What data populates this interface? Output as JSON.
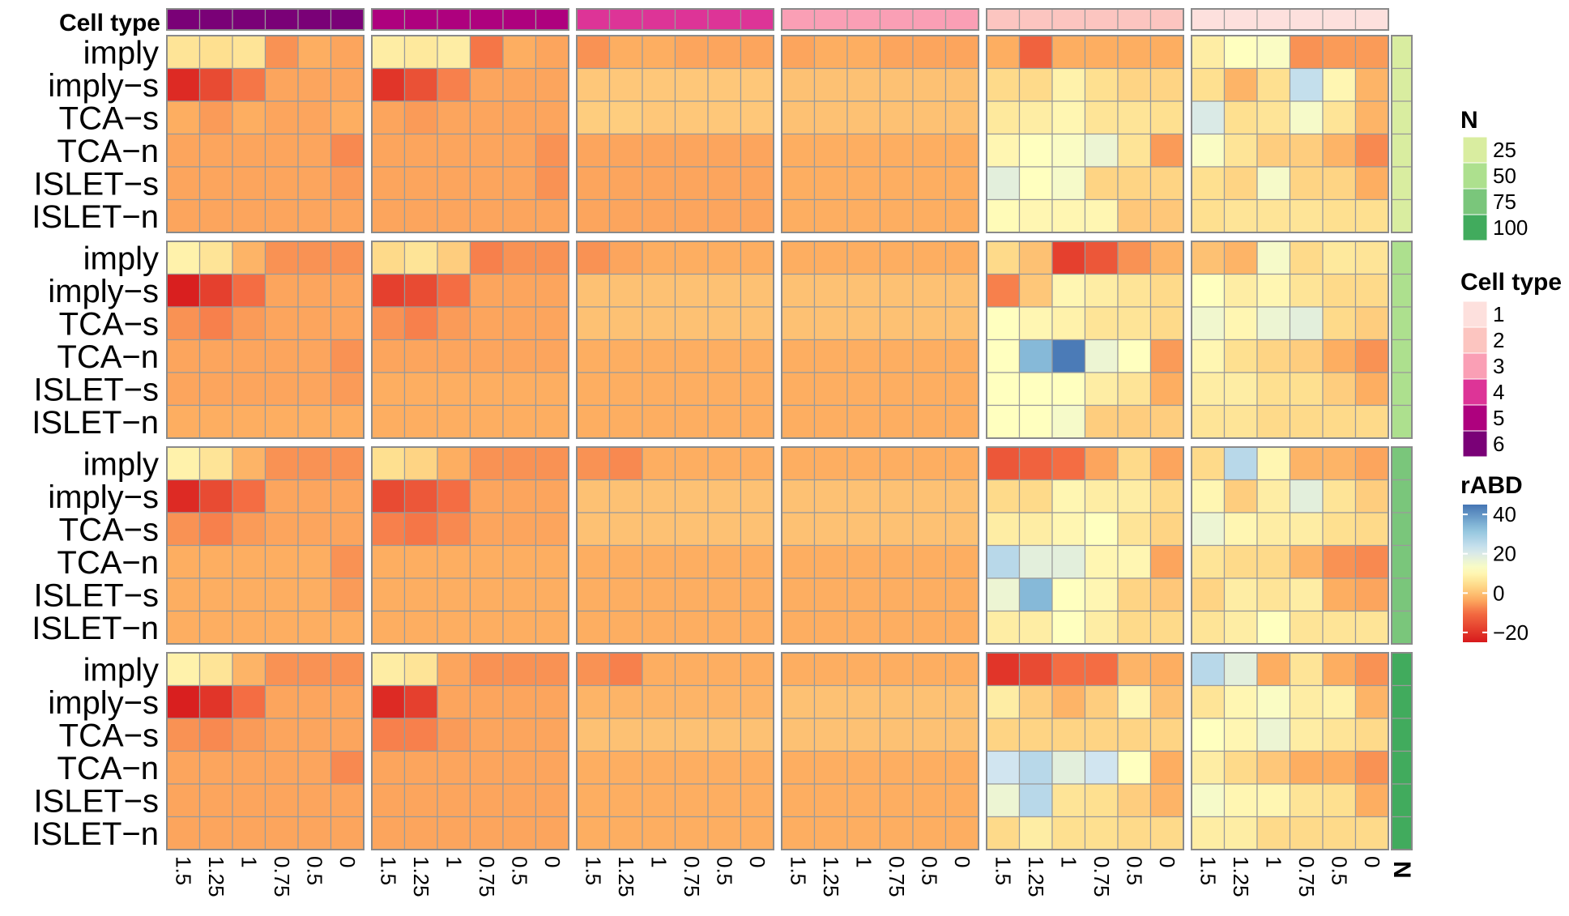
{
  "chart_data": {
    "type": "heatmap",
    "annotation_title": "Cell type",
    "bottom_annotation_title": "N",
    "row_labels": [
      "imply",
      "imply−s",
      "TCA−s",
      "TCA−n",
      "ISLET−s",
      "ISLET−n"
    ],
    "col_labels": [
      "1.5",
      "1.25",
      "1",
      "0.75",
      "0.5",
      "0"
    ],
    "row_groups": [
      {
        "N": 25
      },
      {
        "N": 50
      },
      {
        "N": 75
      },
      {
        "N": 100
      }
    ],
    "col_groups": [
      {
        "cell_type": 6
      },
      {
        "cell_type": 5
      },
      {
        "cell_type": 4
      },
      {
        "cell_type": 3
      },
      {
        "cell_type": 2
      },
      {
        "cell_type": 1
      }
    ],
    "values": [
      [
        [
          [
            6,
            5,
            6,
            -6,
            -3,
            -4
          ],
          [
            -22,
            -16,
            -9,
            -4,
            -4,
            -4
          ],
          [
            -3,
            -5,
            -3,
            -4,
            -4,
            -3
          ],
          [
            -4,
            -4,
            -4,
            -4,
            -4,
            -7
          ],
          [
            -4,
            -4,
            -4,
            -4,
            -4,
            -5
          ],
          [
            -4,
            -4,
            -4,
            -4,
            -4,
            -4
          ]
        ],
        [
          [
            8,
            7,
            8,
            -9,
            -3,
            -4
          ],
          [
            -20,
            -15,
            -8,
            -4,
            -4,
            -4
          ],
          [
            -4,
            -5,
            -4,
            -4,
            -4,
            -4
          ],
          [
            -4,
            -4,
            -4,
            -4,
            -4,
            -6
          ],
          [
            -4,
            -4,
            -4,
            -4,
            -4,
            -6
          ],
          [
            -4,
            -4,
            -4,
            -4,
            -4,
            -4
          ]
        ],
        [
          [
            -6,
            -3,
            -3,
            -4,
            -4,
            -4
          ],
          [
            1,
            1,
            1,
            1,
            1,
            1
          ],
          [
            2,
            2,
            1,
            1,
            1,
            1
          ],
          [
            -4,
            -4,
            -4,
            -4,
            -4,
            -4
          ],
          [
            -4,
            -4,
            -4,
            -4,
            -4,
            -4
          ],
          [
            -4,
            -4,
            -4,
            -4,
            -4,
            -4
          ]
        ],
        [
          [
            -4,
            -3,
            -3,
            -4,
            -4,
            -4
          ],
          [
            0,
            0,
            0,
            0,
            0,
            0
          ],
          [
            0,
            0,
            0,
            0,
            0,
            0
          ],
          [
            -3,
            -3,
            -3,
            -3,
            -3,
            -3
          ],
          [
            -3,
            -3,
            -3,
            -3,
            -3,
            -3
          ],
          [
            -3,
            -3,
            -3,
            -3,
            -3,
            -3
          ]
        ],
        [
          [
            -3,
            -12,
            -3,
            -3,
            -3,
            -3
          ],
          [
            4,
            4,
            9,
            5,
            3,
            3
          ],
          [
            7,
            8,
            10,
            6,
            6,
            5
          ],
          [
            10,
            12,
            13,
            16,
            6,
            -5
          ],
          [
            18,
            12,
            14,
            3,
            3,
            3
          ],
          [
            11,
            10,
            10,
            10,
            1,
            1
          ]
        ],
        [
          [
            8,
            12,
            13,
            -6,
            -5,
            -5
          ],
          [
            5,
            -2,
            5,
            24,
            10,
            -2
          ],
          [
            20,
            5,
            6,
            14,
            6,
            -2
          ],
          [
            13,
            6,
            2,
            2,
            -2,
            -7
          ],
          [
            5,
            3,
            14,
            3,
            3,
            -3
          ],
          [
            5,
            6,
            6,
            6,
            5,
            5
          ]
        ]
      ],
      [
        [
          [
            9,
            6,
            -2,
            -6,
            -6,
            -6
          ],
          [
            -24,
            -18,
            -10,
            -4,
            -4,
            -4
          ],
          [
            -6,
            -8,
            -5,
            -4,
            -4,
            -4
          ],
          [
            -4,
            -4,
            -4,
            -4,
            -4,
            -6
          ],
          [
            -4,
            -4,
            -4,
            -4,
            -4,
            -5
          ],
          [
            -3,
            -3,
            -3,
            -3,
            -3,
            -3
          ]
        ],
        [
          [
            4,
            6,
            2,
            -8,
            -6,
            -6
          ],
          [
            -18,
            -16,
            -10,
            -4,
            -4,
            -4
          ],
          [
            -6,
            -8,
            -5,
            -4,
            -4,
            -4
          ],
          [
            -4,
            -4,
            -4,
            -4,
            -4,
            -4
          ],
          [
            -3,
            -3,
            -3,
            -3,
            -3,
            -3
          ],
          [
            -3,
            -3,
            -3,
            -3,
            -3,
            -3
          ]
        ],
        [
          [
            -6,
            -4,
            -3,
            -3,
            -3,
            -3
          ],
          [
            0,
            0,
            0,
            0,
            0,
            0
          ],
          [
            0,
            0,
            0,
            0,
            0,
            0
          ],
          [
            -3,
            -3,
            -3,
            -3,
            -3,
            -3
          ],
          [
            -3,
            -3,
            -3,
            -3,
            -3,
            -3
          ],
          [
            -3,
            -3,
            -3,
            -3,
            -3,
            -3
          ]
        ],
        [
          [
            -3,
            -3,
            -3,
            -3,
            -3,
            -3
          ],
          [
            0,
            0,
            0,
            0,
            0,
            0
          ],
          [
            0,
            0,
            0,
            0,
            0,
            0
          ],
          [
            -3,
            -3,
            -3,
            -3,
            -3,
            -3
          ],
          [
            -3,
            -3,
            -3,
            -3,
            -3,
            -3
          ],
          [
            -3,
            -3,
            -3,
            -3,
            -3,
            -3
          ]
        ],
        [
          [
            4,
            0,
            -18,
            -14,
            -6,
            -2
          ],
          [
            -8,
            1,
            10,
            8,
            6,
            4
          ],
          [
            12,
            10,
            9,
            6,
            6,
            4
          ],
          [
            12,
            34,
            44,
            16,
            12,
            -5
          ],
          [
            12,
            12,
            12,
            8,
            6,
            -3
          ],
          [
            12,
            12,
            14,
            2,
            2,
            2
          ]
        ],
        [
          [
            0,
            -2,
            14,
            4,
            7,
            6
          ],
          [
            12,
            8,
            10,
            6,
            4,
            4
          ],
          [
            15,
            10,
            16,
            18,
            4,
            2
          ],
          [
            10,
            5,
            3,
            2,
            -3,
            -6
          ],
          [
            8,
            8,
            5,
            5,
            2,
            -3
          ],
          [
            6,
            6,
            4,
            4,
            4,
            4
          ]
        ]
      ],
      [
        [
          [
            9,
            6,
            -2,
            -6,
            -6,
            -6
          ],
          [
            -22,
            -16,
            -10,
            -4,
            -4,
            -4
          ],
          [
            -6,
            -8,
            -5,
            -4,
            -4,
            -4
          ],
          [
            -3,
            -3,
            -3,
            -3,
            -3,
            -6
          ],
          [
            -3,
            -3,
            -3,
            -3,
            -3,
            -5
          ],
          [
            -3,
            -3,
            -3,
            -3,
            -3,
            -3
          ]
        ],
        [
          [
            5,
            3,
            -3,
            -6,
            -6,
            -6
          ],
          [
            -16,
            -14,
            -10,
            -4,
            -4,
            -4
          ],
          [
            -8,
            -9,
            -7,
            -4,
            -4,
            -4
          ],
          [
            -3,
            -3,
            -3,
            -3,
            -3,
            -3
          ],
          [
            -3,
            -3,
            -3,
            -3,
            -3,
            -3
          ],
          [
            -3,
            -3,
            -3,
            -3,
            -3,
            -3
          ]
        ],
        [
          [
            -6,
            -7,
            -3,
            -3,
            -3,
            -3
          ],
          [
            0,
            0,
            0,
            0,
            0,
            0
          ],
          [
            0,
            0,
            0,
            0,
            0,
            0
          ],
          [
            -3,
            -3,
            -3,
            -3,
            -3,
            -3
          ],
          [
            -3,
            -3,
            -3,
            -3,
            -3,
            -3
          ],
          [
            -3,
            -3,
            -3,
            -3,
            -3,
            -3
          ]
        ],
        [
          [
            -3,
            -3,
            -3,
            -3,
            -3,
            -3
          ],
          [
            0,
            0,
            0,
            0,
            0,
            0
          ],
          [
            0,
            0,
            0,
            0,
            0,
            0
          ],
          [
            -3,
            -3,
            -3,
            -3,
            -3,
            -3
          ],
          [
            -3,
            -3,
            -3,
            -3,
            -3,
            -3
          ],
          [
            -3,
            -3,
            -3,
            -3,
            -3,
            -3
          ]
        ],
        [
          [
            -14,
            -12,
            -10,
            -4,
            4,
            -4
          ],
          [
            4,
            4,
            10,
            8,
            8,
            4
          ],
          [
            8,
            8,
            10,
            12,
            6,
            3
          ],
          [
            26,
            18,
            18,
            10,
            10,
            -4
          ],
          [
            16,
            34,
            12,
            10,
            3,
            1
          ],
          [
            8,
            8,
            12,
            8,
            4,
            4
          ]
        ],
        [
          [
            4,
            26,
            10,
            -2,
            -2,
            -4
          ],
          [
            10,
            2,
            8,
            18,
            6,
            2
          ],
          [
            16,
            10,
            8,
            8,
            5,
            4
          ],
          [
            6,
            4,
            4,
            -2,
            -6,
            -7
          ],
          [
            3,
            8,
            6,
            8,
            -3,
            -4
          ],
          [
            6,
            8,
            12,
            6,
            6,
            6
          ]
        ]
      ],
      [
        [
          [
            9,
            6,
            -2,
            -6,
            -6,
            -6
          ],
          [
            -24,
            -20,
            -10,
            -4,
            -4,
            -4
          ],
          [
            -6,
            -7,
            -5,
            -4,
            -4,
            -4
          ],
          [
            -4,
            -4,
            -4,
            -4,
            -4,
            -7
          ],
          [
            -4,
            -4,
            -4,
            -4,
            -4,
            -4
          ],
          [
            -4,
            -4,
            -4,
            -4,
            -4,
            -4
          ]
        ],
        [
          [
            8,
            6,
            -4,
            -6,
            -6,
            -6
          ],
          [
            -22,
            -18,
            -4,
            -4,
            -4,
            -4
          ],
          [
            -8,
            -8,
            -5,
            -4,
            -4,
            -4
          ],
          [
            -4,
            -4,
            -4,
            -4,
            -4,
            -4
          ],
          [
            -4,
            -4,
            -4,
            -4,
            -4,
            -4
          ],
          [
            -4,
            -4,
            -4,
            -4,
            -4,
            -4
          ]
        ],
        [
          [
            -6,
            -8,
            -3,
            -3,
            -3,
            -3
          ],
          [
            -2,
            -2,
            -2,
            -2,
            -2,
            -2
          ],
          [
            0,
            0,
            0,
            0,
            0,
            0
          ],
          [
            -3,
            -3,
            -3,
            -3,
            -3,
            -3
          ],
          [
            -3,
            -3,
            -3,
            -3,
            -3,
            -3
          ],
          [
            -3,
            -3,
            -3,
            -3,
            -3,
            -3
          ]
        ],
        [
          [
            -3,
            -3,
            -3,
            -3,
            -3,
            -3
          ],
          [
            0,
            0,
            0,
            0,
            0,
            0
          ],
          [
            0,
            0,
            0,
            0,
            0,
            0
          ],
          [
            -3,
            -3,
            -3,
            -3,
            -3,
            -3
          ],
          [
            -3,
            -3,
            -3,
            -3,
            -3,
            -3
          ],
          [
            -3,
            -3,
            -3,
            -3,
            -3,
            -3
          ]
        ],
        [
          [
            -20,
            -16,
            -10,
            -10,
            -2,
            -3
          ],
          [
            8,
            2,
            -2,
            2,
            10,
            0
          ],
          [
            3,
            3,
            3,
            3,
            3,
            3
          ],
          [
            22,
            26,
            18,
            22,
            12,
            -3
          ],
          [
            16,
            26,
            6,
            5,
            2,
            -2
          ],
          [
            4,
            8,
            5,
            5,
            4,
            4
          ]
        ],
        [
          [
            26,
            18,
            -3,
            6,
            -3,
            -6
          ],
          [
            6,
            10,
            13,
            8,
            9,
            -2
          ],
          [
            12,
            10,
            16,
            8,
            6,
            4
          ],
          [
            8,
            4,
            1,
            -3,
            -3,
            -6
          ],
          [
            14,
            10,
            10,
            6,
            5,
            -3
          ],
          [
            8,
            8,
            4,
            4,
            4,
            4
          ]
        ]
      ]
    ],
    "N_legend": {
      "title": "N",
      "labels": [
        "25",
        "50",
        "75",
        "100"
      ],
      "colors": [
        "#d9eda0",
        "#ade08e",
        "#7ac67b",
        "#41ab5d"
      ]
    },
    "celltype_legend": {
      "title": "Cell type",
      "labels": [
        "1",
        "2",
        "3",
        "4",
        "5",
        "6"
      ],
      "colors": [
        "#fde0dd",
        "#fcc5c0",
        "#fa9fb5",
        "#dd3497",
        "#ae017e",
        "#7a0177"
      ]
    },
    "rabd_legend": {
      "title": "rABD",
      "labels": [
        "40",
        "20",
        "0",
        "−20"
      ],
      "ticks": [
        40,
        20,
        0,
        -20
      ],
      "range": [
        -25,
        45
      ]
    }
  }
}
